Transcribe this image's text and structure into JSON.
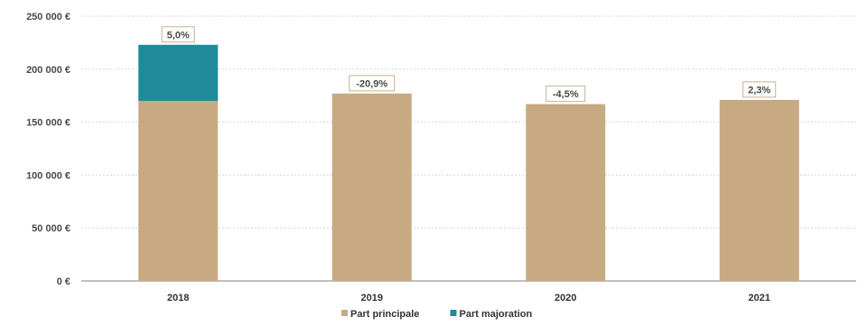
{
  "chart_data": {
    "type": "bar",
    "stacked": true,
    "categories": [
      "2018",
      "2019",
      "2020",
      "2021"
    ],
    "series": [
      {
        "name": "Part principale",
        "values": [
          170000,
          177000,
          167000,
          171000
        ],
        "color": "#c8aa82"
      },
      {
        "name": "Part majoration",
        "values": [
          53000,
          0,
          0,
          0
        ],
        "color": "#1e8a9a"
      }
    ],
    "data_labels": [
      "5,0%",
      "-20,9%",
      "-4,5%",
      "2,3%"
    ],
    "y_ticks": [
      "0 €",
      "50 000 €",
      "100 000 €",
      "150 000 €",
      "200 000 €",
      "250 000 €"
    ],
    "ylim": [
      0,
      250000
    ],
    "grid": true,
    "legend_position": "bottom"
  }
}
